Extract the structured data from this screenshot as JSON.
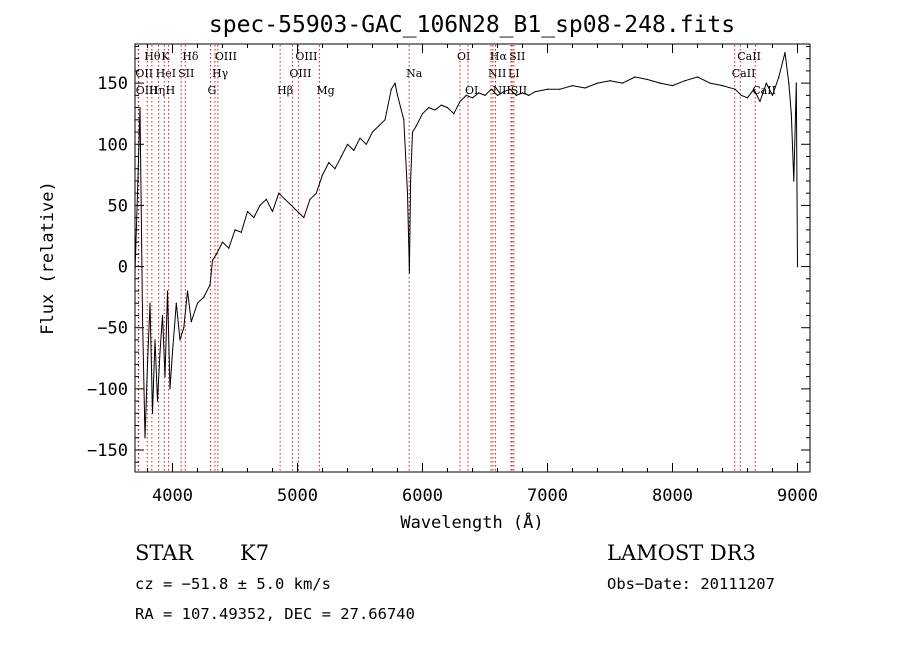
{
  "chart_data": {
    "type": "line",
    "title": "spec-55903-GAC_106N28_B1_sp08-248.fits",
    "xlabel": "Wavelength (Å)",
    "ylabel": "Flux (relative)",
    "xlim": [
      3700,
      9100
    ],
    "ylim": [
      -168,
      182
    ],
    "xticks": [
      4000,
      5000,
      6000,
      7000,
      8000,
      9000
    ],
    "yticks": [
      -150,
      -100,
      -50,
      0,
      50,
      100,
      150
    ],
    "series": [
      {
        "name": "flux",
        "x": [
          3700,
          3720,
          3740,
          3760,
          3780,
          3800,
          3820,
          3840,
          3860,
          3880,
          3900,
          3920,
          3940,
          3960,
          3980,
          4000,
          4030,
          4060,
          4090,
          4120,
          4150,
          4200,
          4250,
          4300,
          4320,
          4350,
          4400,
          4450,
          4500,
          4550,
          4600,
          4650,
          4700,
          4750,
          4800,
          4850,
          4900,
          4950,
          5000,
          5050,
          5100,
          5150,
          5200,
          5250,
          5300,
          5350,
          5400,
          5450,
          5500,
          5550,
          5600,
          5650,
          5700,
          5750,
          5780,
          5800,
          5850,
          5880,
          5895,
          5905,
          5920,
          5950,
          6000,
          6050,
          6100,
          6150,
          6200,
          6250,
          6300,
          6350,
          6400,
          6450,
          6500,
          6550,
          6600,
          6650,
          6700,
          6750,
          6800,
          6850,
          6900,
          7000,
          7100,
          7200,
          7300,
          7400,
          7500,
          7600,
          7700,
          7800,
          7900,
          8000,
          8100,
          8200,
          8300,
          8400,
          8500,
          8550,
          8600,
          8650,
          8700,
          8750,
          8800,
          8850,
          8900,
          8930,
          8950,
          8970,
          8990,
          9000
        ],
        "values": [
          -5,
          60,
          130,
          -40,
          -140,
          -80,
          -30,
          -120,
          -60,
          -110,
          -70,
          -40,
          -90,
          -20,
          -100,
          -70,
          -30,
          -60,
          -50,
          -20,
          -45,
          -30,
          -25,
          -15,
          5,
          10,
          20,
          15,
          30,
          28,
          45,
          40,
          50,
          55,
          45,
          60,
          55,
          50,
          45,
          40,
          55,
          60,
          75,
          85,
          80,
          90,
          100,
          95,
          105,
          100,
          110,
          115,
          120,
          145,
          150,
          140,
          120,
          60,
          -5,
          70,
          110,
          115,
          125,
          130,
          128,
          132,
          130,
          125,
          135,
          140,
          138,
          142,
          140,
          145,
          140,
          143,
          145,
          140,
          142,
          140,
          143,
          145,
          145,
          148,
          146,
          150,
          152,
          150,
          155,
          153,
          150,
          148,
          152,
          155,
          150,
          148,
          145,
          140,
          138,
          145,
          135,
          150,
          140,
          155,
          175,
          150,
          125,
          70,
          150,
          0
        ]
      }
    ],
    "line_markers": [
      {
        "label": "Hθ",
        "x": 3798,
        "row": 0
      },
      {
        "label": "OII",
        "x": 3727,
        "row": 1
      },
      {
        "label": "OIII",
        "x": 3730,
        "row": 2
      },
      {
        "label": "K",
        "x": 3934,
        "row": 0
      },
      {
        "label": "HeI",
        "x": 3889,
        "row": 1
      },
      {
        "label": "Hη",
        "x": 3835,
        "row": 2
      },
      {
        "label": "H",
        "x": 3969,
        "row": 2
      },
      {
        "label": "Hδ",
        "x": 4102,
        "row": 0
      },
      {
        "label": "SII",
        "x": 4069,
        "row": 1
      },
      {
        "label": "OIII",
        "x": 4363,
        "row": 0
      },
      {
        "label": "Hγ",
        "x": 4340,
        "row": 1
      },
      {
        "label": "G",
        "x": 4304,
        "row": 2
      },
      {
        "label": "OIII",
        "x": 5007,
        "row": 0
      },
      {
        "label": "OIII",
        "x": 4959,
        "row": 1
      },
      {
        "label": "Hβ",
        "x": 4861,
        "row": 2
      },
      {
        "label": "Mg",
        "x": 5175,
        "row": 2
      },
      {
        "label": "Na",
        "x": 5893,
        "row": 1
      },
      {
        "label": "OI",
        "x": 6300,
        "row": 0
      },
      {
        "label": "OI",
        "x": 6364,
        "row": 2
      },
      {
        "label": "Hα",
        "x": 6563,
        "row": 0
      },
      {
        "label": "NII",
        "x": 6548,
        "row": 1
      },
      {
        "label": "NII",
        "x": 6584,
        "row": 2
      },
      {
        "label": "SII",
        "x": 6717,
        "row": 0
      },
      {
        "label": "LI",
        "x": 6708,
        "row": 1
      },
      {
        "label": "SII",
        "x": 6731,
        "row": 2
      },
      {
        "label": "CaII",
        "x": 8542,
        "row": 0
      },
      {
        "label": "CaII",
        "x": 8498,
        "row": 1
      },
      {
        "label": "CaII",
        "x": 8662,
        "row": 2
      }
    ]
  },
  "info": {
    "class_label": "STAR",
    "subclass": "K7",
    "survey": "LAMOST DR3",
    "cz": "cz = −51.8 ± 5.0 km/s",
    "obs_date": "Obs−Date: 20111207",
    "coords": "RA = 107.49352, DEC =  27.66740"
  },
  "colors": {
    "line": "#000000",
    "marker": "#cc0000",
    "axis": "#000000",
    "background": "#ffffff"
  }
}
